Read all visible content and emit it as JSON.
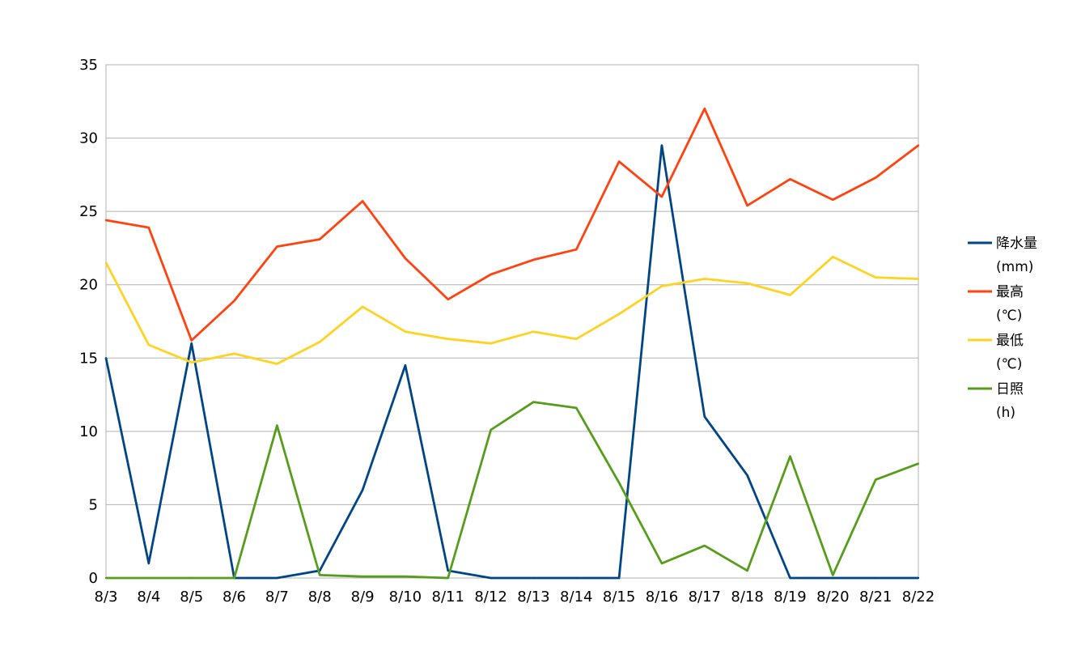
{
  "chart_data": {
    "type": "line",
    "title": "",
    "xlabel": "",
    "ylabel": "",
    "ylim": [
      0,
      35
    ],
    "yticks": [
      0,
      5,
      10,
      15,
      20,
      25,
      30,
      35
    ],
    "grid": true,
    "legend_position": "right",
    "categories": [
      "8/3",
      "8/4",
      "8/5",
      "8/6",
      "8/7",
      "8/8",
      "8/9",
      "8/10",
      "8/11",
      "8/12",
      "8/13",
      "8/14",
      "8/15",
      "8/16",
      "8/17",
      "8/18",
      "8/19",
      "8/20",
      "8/21",
      "8/22"
    ],
    "series": [
      {
        "name_lines": [
          "降水量",
          "(mm)"
        ],
        "color": "#004586",
        "values": [
          15,
          1,
          16,
          0,
          0,
          0.5,
          6,
          14.5,
          0.5,
          0,
          0,
          0,
          0,
          29.5,
          11,
          7,
          0,
          0,
          0,
          0
        ]
      },
      {
        "name_lines": [
          "最高",
          "(℃)"
        ],
        "color": "#ff420e",
        "values": [
          24.4,
          23.9,
          16.2,
          18.9,
          22.6,
          23.1,
          25.7,
          21.8,
          19.0,
          20.7,
          21.7,
          22.4,
          28.4,
          26.0,
          32.0,
          25.4,
          27.2,
          25.8,
          27.3,
          29.5
        ]
      },
      {
        "name_lines": [
          "最低",
          "(℃)"
        ],
        "color": "#ffd320",
        "values": [
          21.5,
          15.9,
          14.7,
          15.3,
          14.6,
          16.1,
          18.5,
          16.8,
          16.3,
          16.0,
          16.8,
          16.3,
          18.0,
          19.9,
          20.4,
          20.1,
          19.3,
          21.9,
          20.5,
          20.4
        ]
      },
      {
        "name_lines": [
          "日照",
          "(h)"
        ],
        "color": "#579d1c",
        "values": [
          0,
          0,
          0,
          0,
          10.4,
          0.2,
          0.1,
          0.1,
          0,
          10.1,
          12.0,
          11.6,
          6.5,
          1.0,
          2.2,
          0.5,
          8.3,
          0.2,
          6.7,
          7.8
        ]
      }
    ]
  }
}
